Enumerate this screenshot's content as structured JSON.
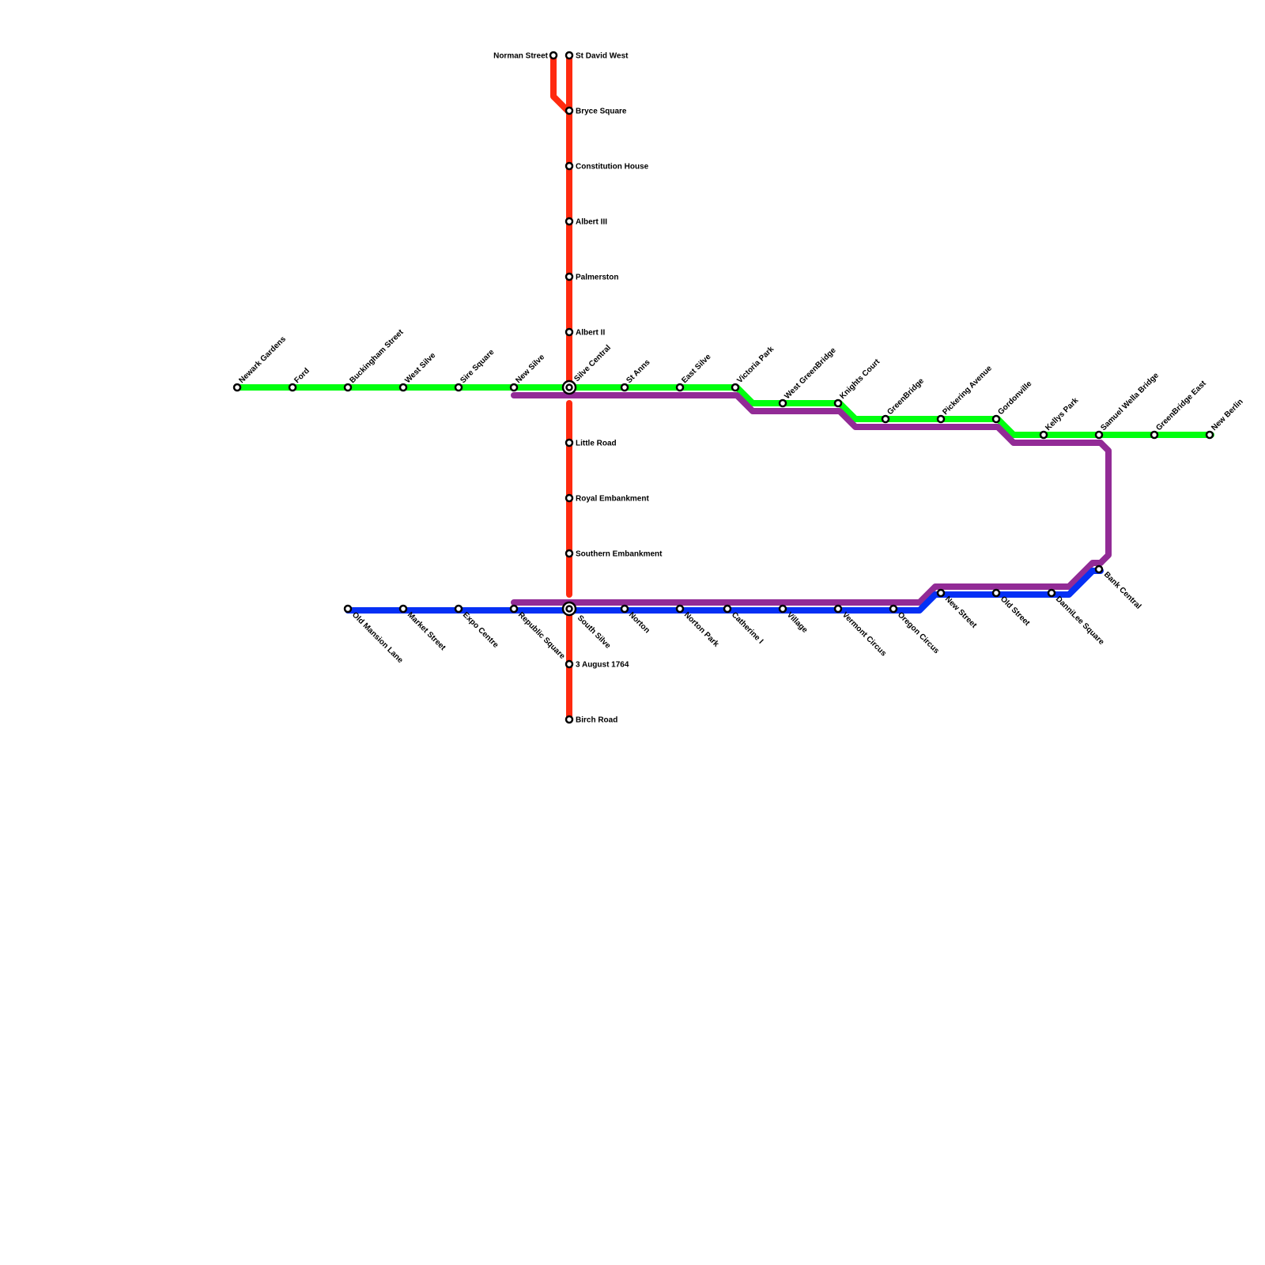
{
  "colors": {
    "red": "#ff2a0f",
    "green": "#00ff0f",
    "purple": "#922b96",
    "blue": "#0530f5"
  },
  "stations": {
    "norman_street": "Norman Street",
    "st_david_west": "St David West",
    "bryce_square": "Bryce Square",
    "constitution_house": "Constitution House",
    "albert_iii": "Albert III",
    "palmerston": "Palmerston",
    "albert_ii": "Albert II",
    "little_road": "Little Road",
    "royal_embankment": "Royal Embankment",
    "southern_embankment": "Southern Embankment",
    "aug_1764": "3 August 1764",
    "birch_road": "Birch Road",
    "newark_gardens": "Newark Gardens",
    "ford": "Ford",
    "buckingham_street": "Buckingham Street",
    "west_silve": "West Silve",
    "sire_square": "Sire Square",
    "new_silve": "New Silve",
    "silve_central": "Silve Central",
    "st_anns": "St Anns",
    "east_silve": "East Silve",
    "victoria_park": "Victoria Park",
    "west_greenbridge": "West GreenBridge",
    "knights_court": "Knights Court",
    "greenbridge": "GreenBridge",
    "pickering_avenue": "Pickering Avenue",
    "gordonville": "Gordonville",
    "kellys_park": "Kellys Park",
    "samuel_wella_bridge": "Samuel Wella Bridge",
    "greenbridge_east": "GreenBridge East",
    "new_berlin": "New Berlin",
    "bank_central": "Bank Central",
    "old_mansion_lane": "Old Mansion Lane",
    "market_street": "Market Street",
    "expo_centre": "Expo Centre",
    "republic_square": "Republic Square",
    "south_silve": "South Silve",
    "norton": "Norton",
    "norton_park": "Norton Park",
    "catherine_i": "Catherine I",
    "village": "Village",
    "vermont_circus": "Vermont Circus",
    "oregon_circus": "Oregon Circus",
    "new_street": "New Street",
    "old_street": "Old Street",
    "dannilee_square": "DanniLee Square"
  }
}
